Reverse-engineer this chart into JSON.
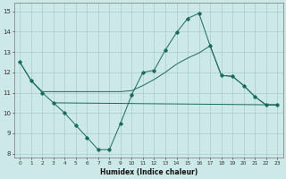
{
  "title": "",
  "xlabel": "Humidex (Indice chaleur)",
  "background_color": "#cce8e8",
  "grid_color": "#aacccc",
  "line_color": "#1a6b5a",
  "xlim": [
    -0.5,
    23.5
  ],
  "ylim": [
    7.8,
    15.4
  ],
  "yticks": [
    8,
    9,
    10,
    11,
    12,
    13,
    14,
    15
  ],
  "xticks": [
    0,
    1,
    2,
    3,
    4,
    5,
    6,
    7,
    8,
    9,
    10,
    11,
    12,
    13,
    14,
    15,
    16,
    17,
    18,
    19,
    20,
    21,
    22,
    23
  ],
  "series_zigzag": {
    "x": [
      0,
      1,
      2,
      3,
      4,
      5,
      6,
      7,
      8,
      9,
      10,
      11,
      12,
      13,
      14,
      15,
      16,
      17,
      18,
      19,
      20,
      21,
      22,
      23
    ],
    "y": [
      12.5,
      11.6,
      11.0,
      10.5,
      10.0,
      9.4,
      8.8,
      8.2,
      8.2,
      9.5,
      10.9,
      12.0,
      12.1,
      13.1,
      13.95,
      14.65,
      14.9,
      13.3,
      11.85,
      11.8,
      11.35,
      10.8,
      10.4,
      10.4
    ]
  },
  "series_smooth": {
    "x": [
      0,
      1,
      2,
      3,
      4,
      5,
      6,
      7,
      8,
      9,
      10,
      11,
      12,
      13,
      14,
      15,
      16,
      17,
      18,
      19,
      20,
      21,
      22,
      23
    ],
    "y": [
      12.5,
      11.6,
      11.05,
      11.05,
      11.05,
      11.05,
      11.05,
      11.05,
      11.05,
      11.05,
      11.1,
      11.35,
      11.65,
      12.0,
      12.4,
      12.7,
      12.95,
      13.3,
      11.85,
      11.8,
      11.35,
      10.8,
      10.4,
      10.4
    ]
  },
  "series_flat": {
    "x": [
      3,
      23
    ],
    "y": [
      10.5,
      10.4
    ]
  }
}
